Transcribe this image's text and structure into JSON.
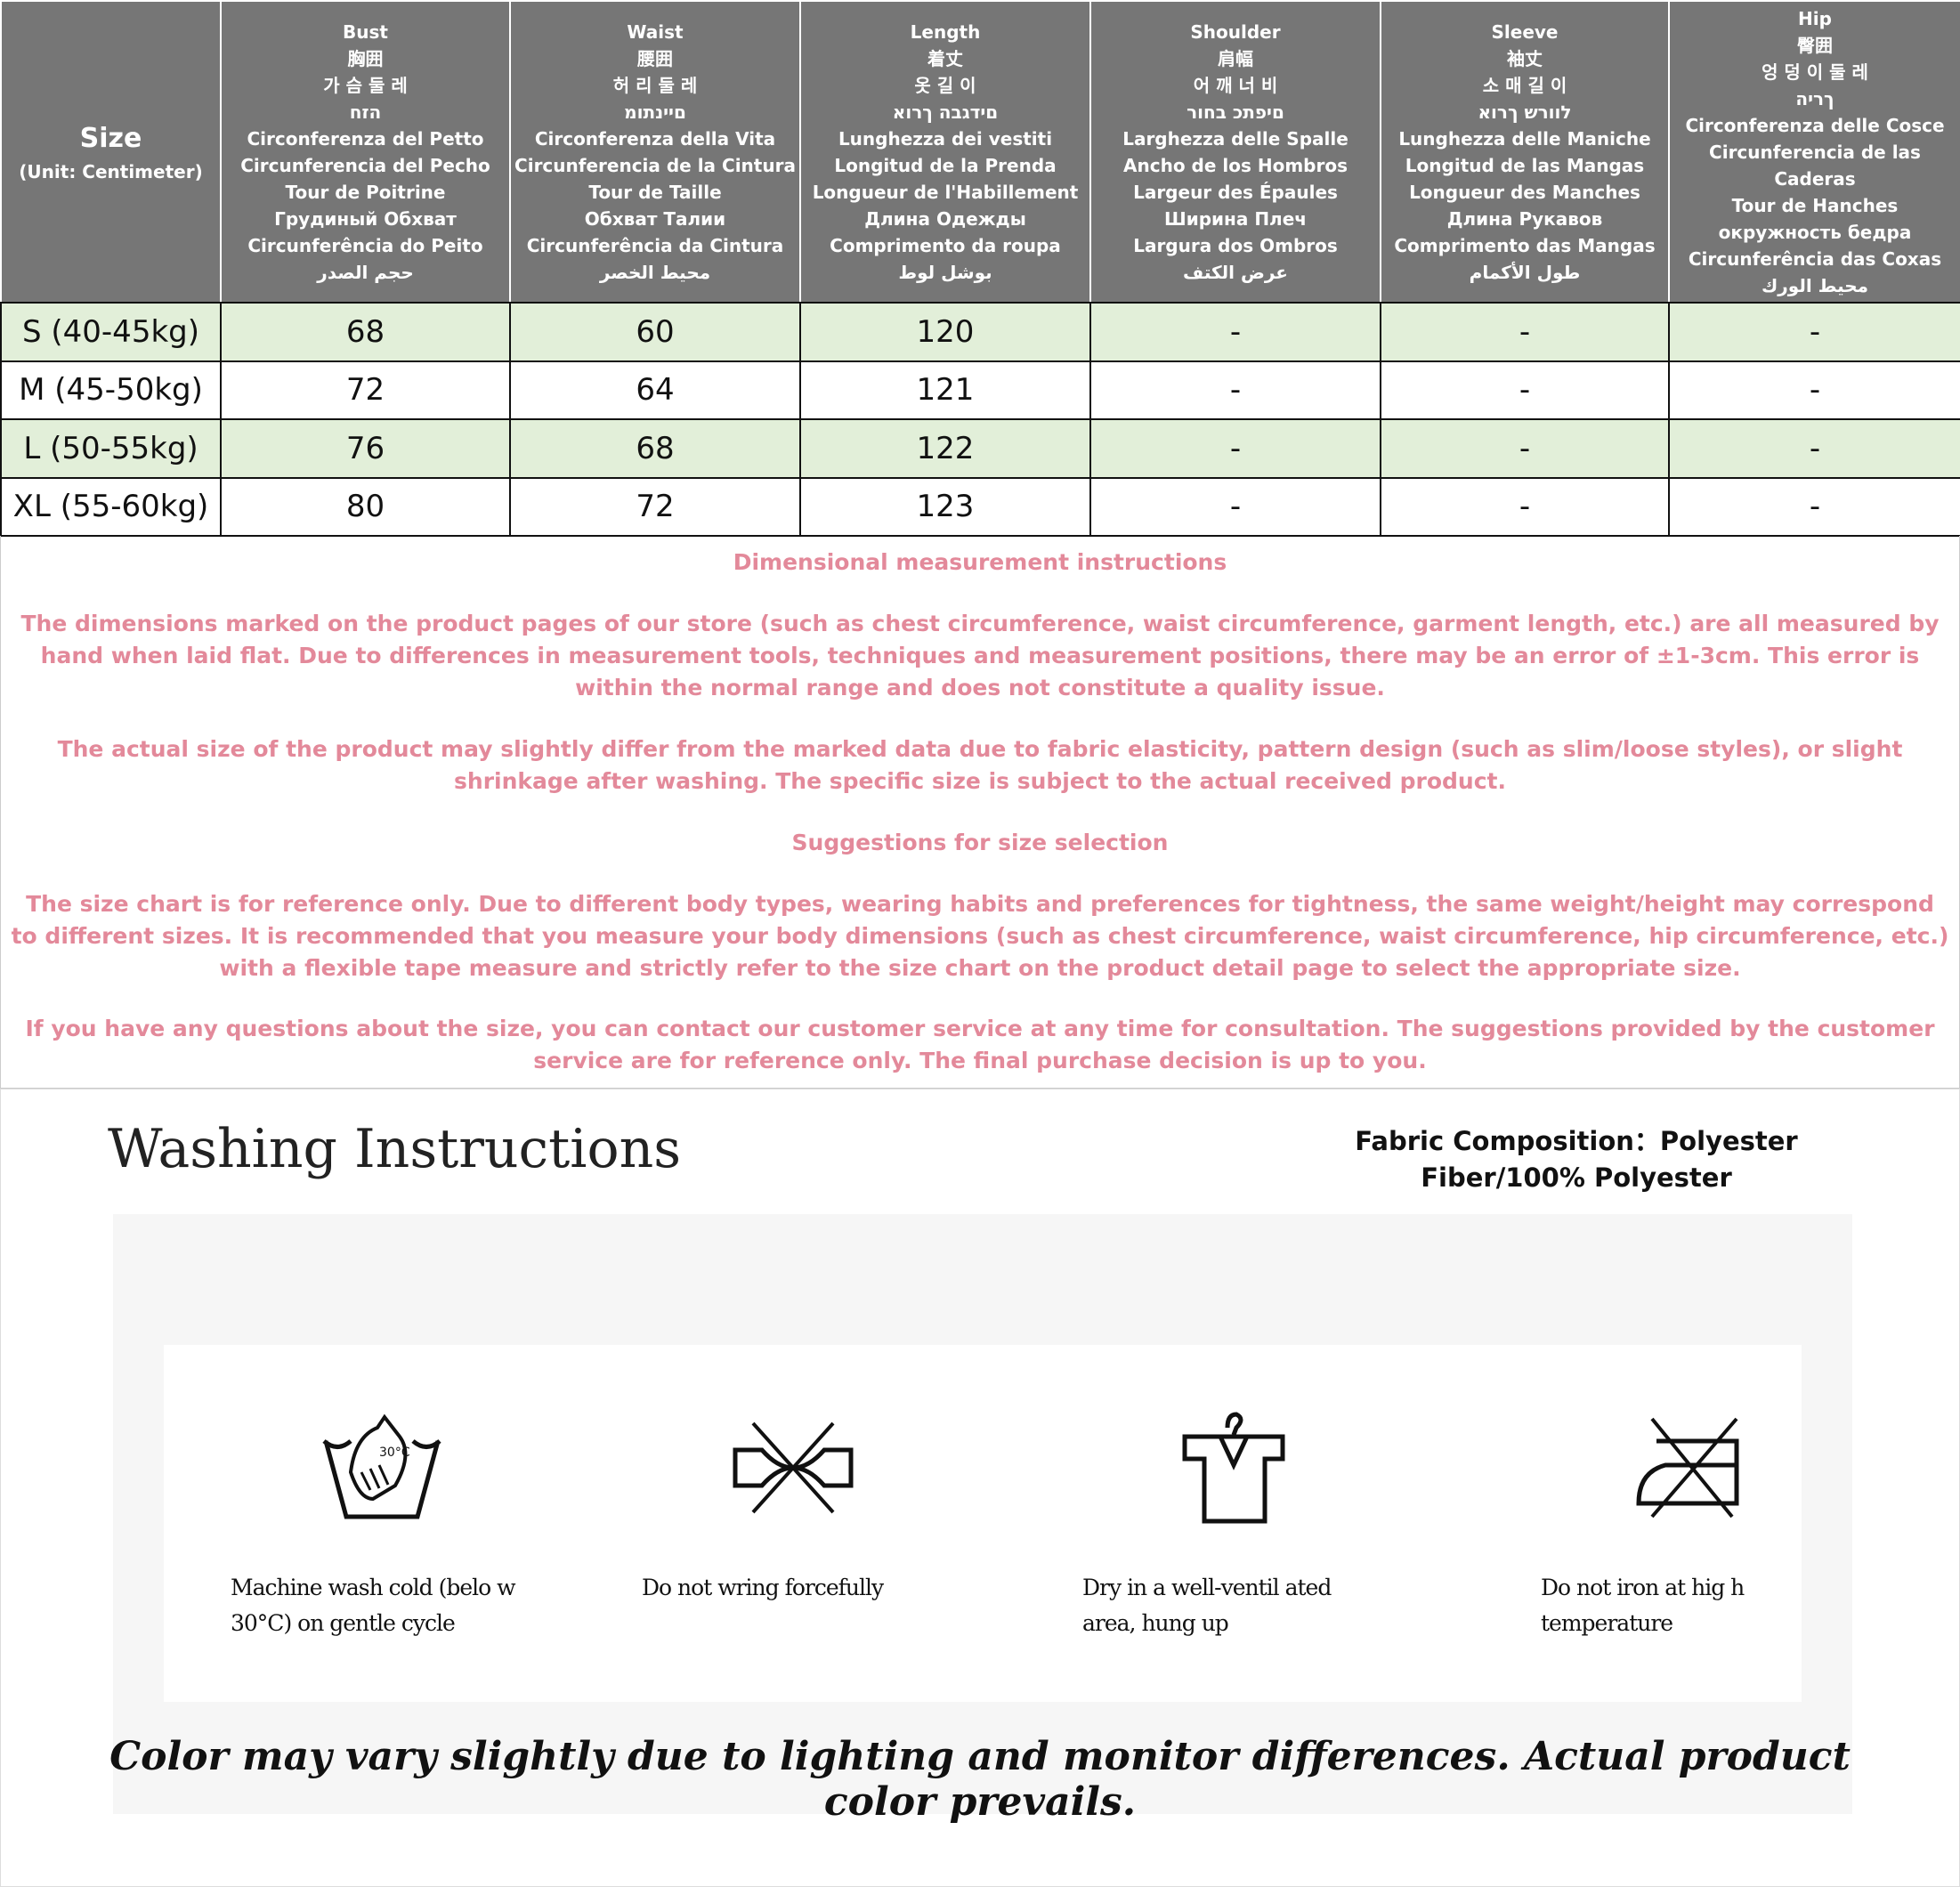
{
  "size_table": {
    "size_header": {
      "title": "Size",
      "unit": "(Unit: Centimeter)"
    },
    "columns": [
      {
        "lines": [
          "Bust",
          "胸囲",
          "가 슴 둘 레",
          "הזח",
          "Circonferenza del Petto",
          "Circunferencia del Pecho",
          "Tour de Poitrine",
          "Грудиный Обхват",
          "Circunferência do Peito",
          "حجم الصدر"
        ]
      },
      {
        "lines": [
          "Waist",
          "腰囲",
          "허 리 둘 레",
          "םיינתומ",
          "Circonferenza della Vita",
          "Circunferencia de la Cintura",
          "Tour de Taille",
          "Обхват Талии",
          "Circunferência da Cintura",
          "محيط الخصر"
        ]
      },
      {
        "lines": [
          "Length",
          "着丈",
          "옷  길 이",
          "םידגבה ךרוא",
          "Lunghezza dei vestiti",
          "Longitud de la Prenda",
          "Longueur de l'Habillement",
          "Длина Одежды",
          "Comprimento da roupa",
          "بوشل لوط"
        ]
      },
      {
        "lines": [
          "Shoulder",
          "肩幅",
          "어 깨 너 비",
          "םיפתכ בחור",
          "Larghezza delle Spalle",
          "Ancho de los Hombros",
          "Largeur des Épaules",
          "Ширина Плеч",
          "Largura dos Ombros",
          "عرض الكتف"
        ]
      },
      {
        "lines": [
          "Sleeve",
          "袖丈",
          "소 매 길 이",
          "לוורש ךרוא",
          "Lunghezza delle Maniche",
          "Longitud de las Mangas",
          "Longueur des Manches",
          "Длина Рукавов",
          "Comprimento das Mangas",
          "طول الأكمام"
        ]
      },
      {
        "lines": [
          "Hip",
          "臀囲",
          "엉 덩 이 둘 레",
          "ךריה",
          "Circonferenza delle Cosce",
          "Circunferencia de las Caderas",
          "Tour de Hanches",
          "окружность бедра",
          "Circunferência das Coxas",
          "محيط الورك"
        ]
      }
    ],
    "rows": [
      {
        "size": "S (40-45kg)",
        "values": [
          "68",
          "60",
          "120",
          "-",
          "-",
          "-"
        ]
      },
      {
        "size": "M (45-50kg)",
        "values": [
          "72",
          "64",
          "121",
          "-",
          "-",
          "-"
        ]
      },
      {
        "size": "L (50-55kg)",
        "values": [
          "76",
          "68",
          "122",
          "-",
          "-",
          "-"
        ]
      },
      {
        "size": "XL (55-60kg)",
        "values": [
          "80",
          "72",
          "123",
          "-",
          "-",
          "-"
        ]
      }
    ],
    "colors": {
      "header_bg": "#767676",
      "highlight_row": "#e2efd9"
    }
  },
  "notes": {
    "color": "#e3899a",
    "title1": "Dimensional measurement instructions",
    "p1": "The dimensions marked on the product pages of our store (such as chest circumference, waist circumference, garment length, etc.) are all measured by hand when laid flat. Due to differences in measurement tools, techniques and measurement positions, there may be an error of ±1-3cm. This error is within the normal range and does not constitute a quality issue.",
    "p2": "The actual size of the product may slightly differ from the marked data due to fabric elasticity, pattern design (such as slim/loose styles), or slight shrinkage after washing. The specific size is subject to the actual received product.",
    "title2": "Suggestions for size selection",
    "p3": "The size chart is for reference only. Due to different body types, wearing habits and preferences for tightness, the same weight/height may correspond to different sizes. It is recommended that you measure your body dimensions (such as chest circumference, waist circumference, hip circumference, etc.) with a flexible tape measure and strictly refer to the size chart on the product detail page to select the appropriate size.",
    "p4": "If you have any questions about the size, you can contact our customer service at any time for consultation. The suggestions provided by the customer service are for reference only. The final purchase decision is up to you."
  },
  "washing": {
    "title": "Washing Instructions",
    "fabric": "Fabric Composition：Polyester Fiber/100% Polyester",
    "items": [
      {
        "icon": "hand-wash-30-icon",
        "caption": "Machine wash cold (belo w 30°C) on gentle cycle",
        "temp": "30°C"
      },
      {
        "icon": "do-not-wring-icon",
        "caption": "Do not wring forcefully"
      },
      {
        "icon": "hang-dry-icon",
        "caption": "Dry in a well-ventil ated area, hung up"
      },
      {
        "icon": "do-not-iron-icon",
        "caption": "Do not iron at hig h temperature"
      }
    ],
    "footer": "Color may vary slightly due to lighting and monitor differences. Actual product color prevails."
  }
}
